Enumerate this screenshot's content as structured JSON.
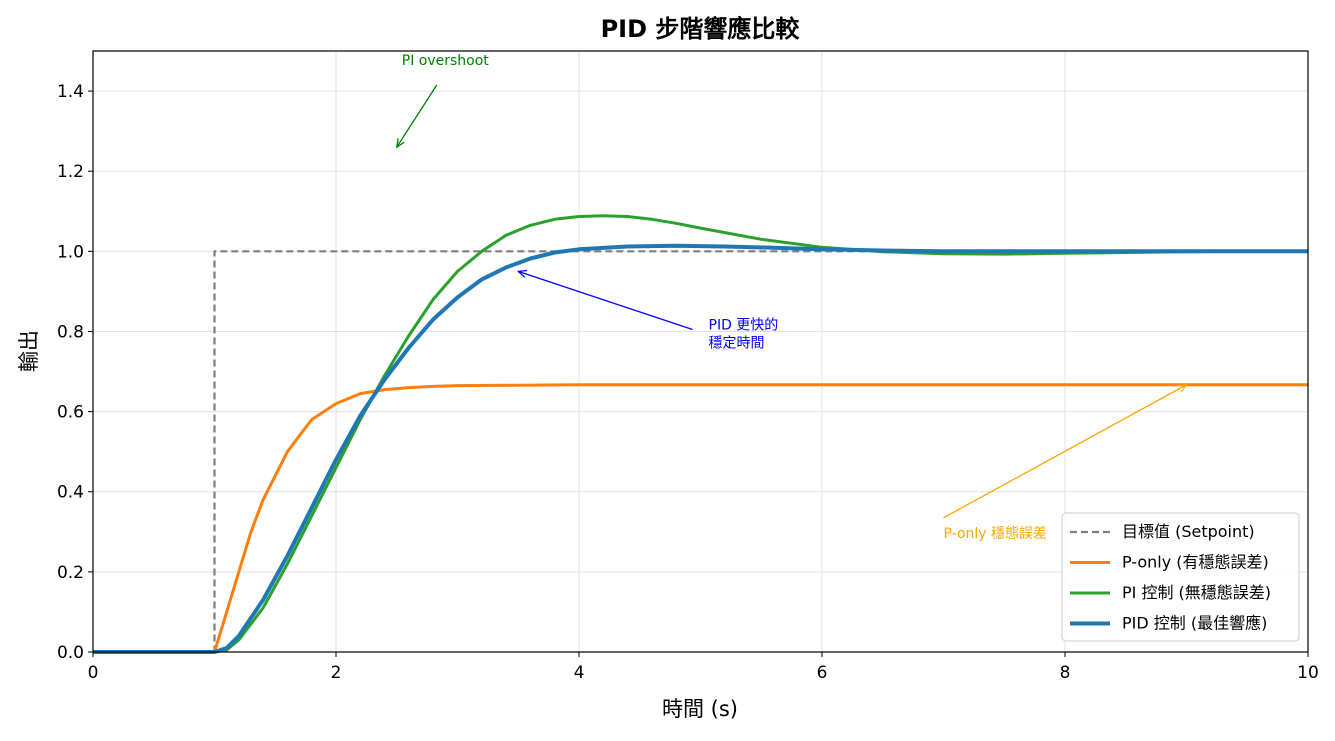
{
  "chart_data": {
    "type": "line",
    "title": "PID 步階響應比較",
    "xlabel": "時間 (s)",
    "ylabel": "輸出",
    "xlim": [
      0,
      10
    ],
    "ylim": [
      0,
      1.5
    ],
    "xticks": [
      0,
      2,
      4,
      6,
      8,
      10
    ],
    "xtick_labels": [
      "0",
      "2",
      "4",
      "6",
      "8",
      "10"
    ],
    "yticks": [
      0.0,
      0.2,
      0.4,
      0.6,
      0.8,
      1.0,
      1.2,
      1.4
    ],
    "ytick_labels": [
      "0.0",
      "0.2",
      "0.4",
      "0.6",
      "0.8",
      "1.0",
      "1.2",
      "1.4"
    ],
    "grid": true,
    "legend_position": "lower-right",
    "series": [
      {
        "name": "目標值 (Setpoint)",
        "color": "#7f7f7f",
        "style": "dashed",
        "x": [
          0,
          1,
          1,
          10
        ],
        "y": [
          0,
          0,
          1,
          1
        ]
      },
      {
        "name": "P-only (有穩態誤差)",
        "color": "#ff7f0e",
        "style": "solid",
        "x": [
          0,
          1,
          1.05,
          1.1,
          1.2,
          1.3,
          1.4,
          1.5,
          1.6,
          1.7,
          1.8,
          2.0,
          2.2,
          2.4,
          2.6,
          2.8,
          3.0,
          3.5,
          4,
          5,
          6,
          7,
          8,
          9,
          10
        ],
        "y": [
          0,
          0,
          0.05,
          0.1,
          0.2,
          0.3,
          0.38,
          0.44,
          0.5,
          0.54,
          0.58,
          0.62,
          0.645,
          0.655,
          0.66,
          0.663,
          0.665,
          0.666,
          0.667,
          0.667,
          0.667,
          0.667,
          0.667,
          0.667,
          0.667
        ]
      },
      {
        "name": "PI 控制 (無穩態誤差)",
        "color": "#2ca02c",
        "style": "solid",
        "x": [
          0,
          1,
          1.1,
          1.2,
          1.4,
          1.6,
          1.8,
          2.0,
          2.2,
          2.4,
          2.6,
          2.8,
          3.0,
          3.2,
          3.4,
          3.6,
          3.8,
          4.0,
          4.2,
          4.4,
          4.6,
          4.8,
          5.0,
          5.5,
          6.0,
          6.5,
          7.0,
          7.5,
          8.0,
          8.5,
          9.0,
          9.5,
          10
        ],
        "y": [
          0,
          0,
          0.005,
          0.03,
          0.11,
          0.22,
          0.34,
          0.46,
          0.58,
          0.69,
          0.79,
          0.88,
          0.95,
          1.0,
          1.04,
          1.065,
          1.08,
          1.087,
          1.089,
          1.087,
          1.08,
          1.07,
          1.058,
          1.03,
          1.01,
          0.999,
          0.994,
          0.993,
          0.995,
          0.997,
          0.999,
          1.0,
          1.0
        ]
      },
      {
        "name": "PID 控制 (最佳響應)",
        "color": "#1f77b4",
        "style": "solid",
        "x": [
          0,
          1,
          1.1,
          1.2,
          1.4,
          1.6,
          1.8,
          2.0,
          2.2,
          2.4,
          2.6,
          2.8,
          3.0,
          3.2,
          3.4,
          3.6,
          3.8,
          4.0,
          4.4,
          4.8,
          5.2,
          5.6,
          6.0,
          6.5,
          7.0,
          8.0,
          9.0,
          10
        ],
        "y": [
          0,
          0,
          0.01,
          0.04,
          0.13,
          0.24,
          0.36,
          0.48,
          0.59,
          0.68,
          0.76,
          0.83,
          0.885,
          0.93,
          0.96,
          0.982,
          0.997,
          1.005,
          1.012,
          1.014,
          1.012,
          1.009,
          1.005,
          1.002,
          1.0,
          1.0,
          1.0,
          1.0
        ]
      }
    ],
    "annotations": [
      {
        "text": "PI overshoot",
        "color": "#008000",
        "text_x": 2.5,
        "text_y": 1.45,
        "point_x": 2.5,
        "point_y": 1.26
      },
      {
        "text": "PID 更快的\n穩定時間",
        "lines": [
          "PID 更快的",
          "穩定時間"
        ],
        "color": "#0000ff",
        "text_x": 5.0,
        "text_y": 0.8,
        "point_x": 3.5,
        "point_y": 0.95
      },
      {
        "text": "P-only 穩態誤差",
        "color": "#ffa500",
        "text_x": 7.0,
        "text_y": 0.3,
        "point_x": 9.0,
        "point_y": 0.667
      }
    ]
  }
}
